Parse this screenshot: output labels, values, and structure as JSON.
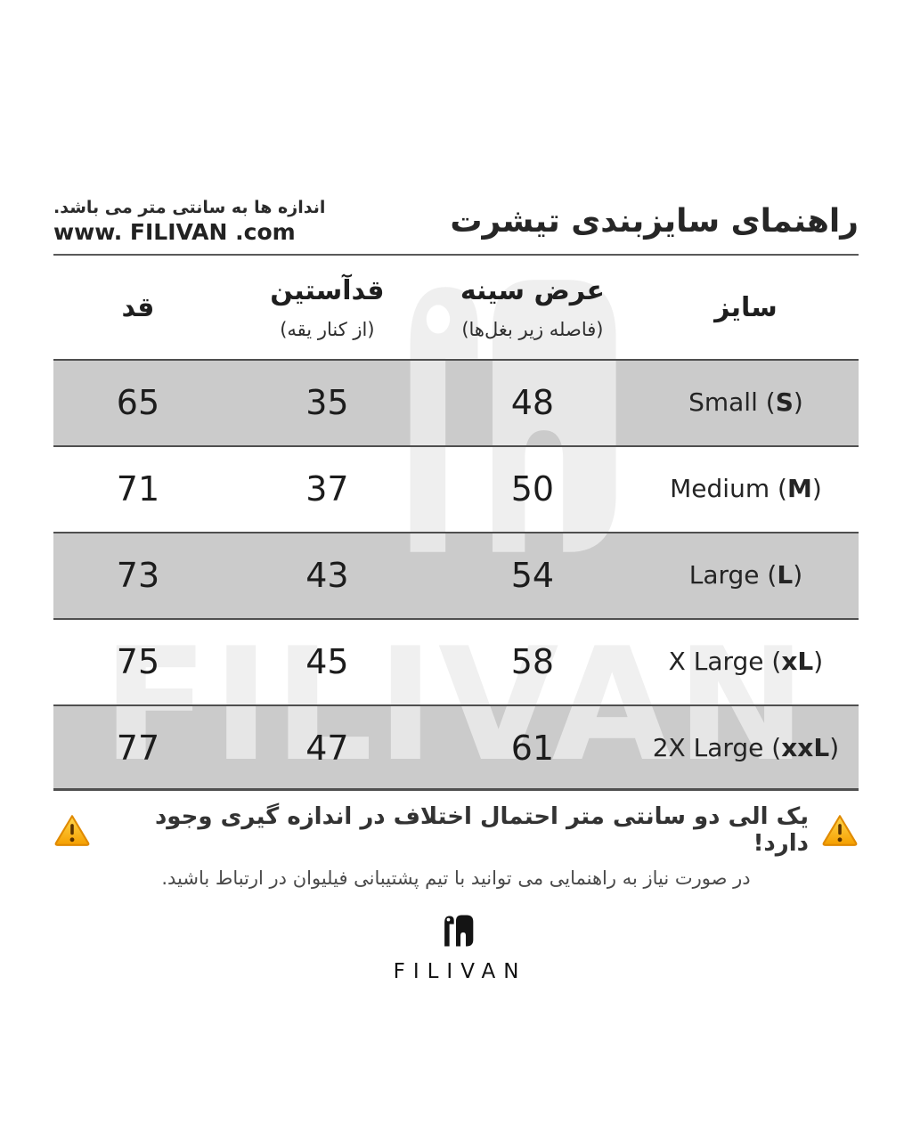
{
  "colors": {
    "row_alt_bg": "#cbcbcb",
    "separator": "#4f4f4f",
    "rule": "#5a5a5a",
    "text_dark": "#2d2d2d",
    "text_muted": "#4a4a4a",
    "watermark": "#ededed",
    "warning_yellow_top": "#ffd74d",
    "warning_yellow_bottom": "#f59f00",
    "warning_border": "#e08a00",
    "warning_glyph": "#5a3200"
  },
  "header": {
    "title": "راهنمای سایزبندی تیشرت",
    "note": "اندازه ها به سانتی متر می باشد.",
    "website": "www. FILIVAN .com"
  },
  "table": {
    "columns": [
      {
        "label": "سایز",
        "sub": ""
      },
      {
        "label": "عرض سینه",
        "sub": "(فاصله زیر بغل‌ها)"
      },
      {
        "label": "قدآستین",
        "sub": "(از کنار یقه)"
      },
      {
        "label": "قد",
        "sub": ""
      }
    ],
    "rows": [
      {
        "size_label": [
          {
            "t": "Small (",
            "b": false
          },
          {
            "t": "S",
            "b": true
          },
          {
            "t": ")",
            "b": false
          }
        ],
        "chest": "48",
        "sleeve": "35",
        "length": "65"
      },
      {
        "size_label": [
          {
            "t": "Medium (",
            "b": false
          },
          {
            "t": "M",
            "b": true
          },
          {
            "t": ")",
            "b": false
          }
        ],
        "chest": "50",
        "sleeve": "37",
        "length": "71"
      },
      {
        "size_label": [
          {
            "t": "Large (",
            "b": false
          },
          {
            "t": "L",
            "b": true
          },
          {
            "t": ")",
            "b": false
          }
        ],
        "chest": "54",
        "sleeve": "43",
        "length": "73"
      },
      {
        "size_label": [
          {
            "t": "X Large (",
            "b": false
          },
          {
            "t": "xL",
            "b": true
          },
          {
            "t": ")",
            "b": false
          }
        ],
        "chest": "58",
        "sleeve": "45",
        "length": "75"
      },
      {
        "size_label": [
          {
            "t": "2X Large (",
            "b": false
          },
          {
            "t": "xxL",
            "b": true
          },
          {
            "t": ")",
            "b": false
          }
        ],
        "chest": "61",
        "sleeve": "47",
        "length": "77"
      }
    ]
  },
  "warning": {
    "line1": "یک الی دو سانتی متر احتمال اختلاف در اندازه گیری وجود دارد!",
    "line2": "در صورت نیاز به راهنمایی می توانید با تیم پشتیبانی فیلیوان در ارتباط باشید.",
    "icon": "warning-triangle-icon"
  },
  "footer": {
    "brand": "FILIVAN",
    "logo_icon": "filivan-elephant-logo-icon"
  },
  "watermark_text": "FILIVAN"
}
